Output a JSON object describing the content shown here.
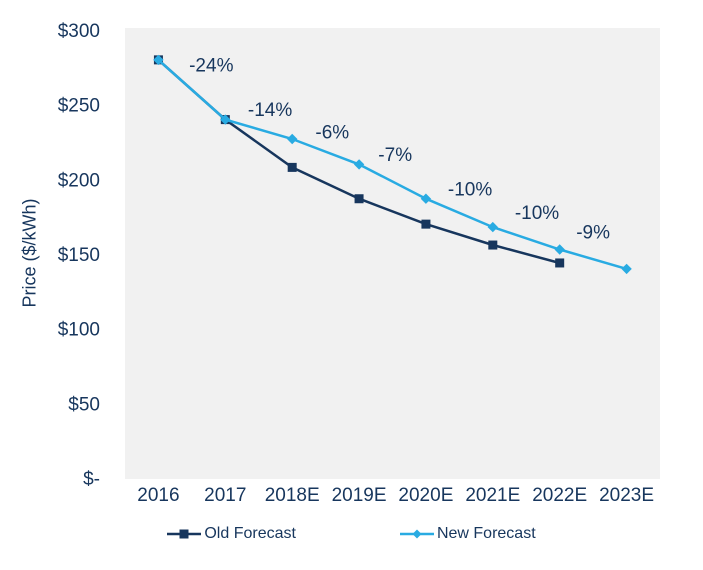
{
  "colors": {
    "text": "#17365d",
    "navy": "#17365d",
    "sky_blue": "#29abe2",
    "plot_background": "#f1f1f1",
    "page_background": "#ffffff"
  },
  "chart_data": {
    "type": "line",
    "title": "",
    "xlabel": "",
    "ylabel": "Price ($/kWh)",
    "grid": false,
    "legend_position": "bottom",
    "plot_bg": "#f1f1f1",
    "ylim": [
      0,
      300
    ],
    "categories": [
      "2016",
      "2017",
      "2018E",
      "2019E",
      "2020E",
      "2021E",
      "2022E",
      "2023E"
    ],
    "y_ticks": [
      {
        "label": "$300",
        "value": 300
      },
      {
        "label": "$250",
        "value": 250
      },
      {
        "label": "$200",
        "value": 200
      },
      {
        "label": "$150",
        "value": 150
      },
      {
        "label": "$100",
        "value": 100
      },
      {
        "label": "$50",
        "value": 50
      },
      {
        "label": "$-",
        "value": 0
      }
    ],
    "series": [
      {
        "name": "Old Forecast",
        "color": "#17365d",
        "marker": "square",
        "values": [
          280,
          240,
          208,
          187,
          170,
          156,
          144,
          null
        ]
      },
      {
        "name": "New Forecast",
        "color": "#29abe2",
        "marker": "diamond",
        "values": [
          280,
          240,
          227,
          210,
          187,
          168,
          153,
          140
        ]
      }
    ],
    "annotations": [
      {
        "text": "-24%",
        "x": 0.79,
        "y": 277
      },
      {
        "text": "-14%",
        "x": 1.67,
        "y": 247
      },
      {
        "text": "-6%",
        "x": 2.6,
        "y": 232
      },
      {
        "text": "-7%",
        "x": 3.54,
        "y": 217
      },
      {
        "text": "-10%",
        "x": 4.66,
        "y": 194
      },
      {
        "text": "-10%",
        "x": 5.66,
        "y": 178
      },
      {
        "text": "-9%",
        "x": 6.5,
        "y": 165
      }
    ]
  }
}
